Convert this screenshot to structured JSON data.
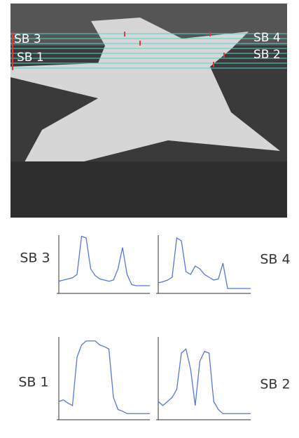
{
  "photo": {
    "labels": [
      "SB 3",
      "SB 1",
      "SB 4",
      "SB 2"
    ]
  },
  "chart_data": [
    {
      "type": "line",
      "title": "SB 3",
      "x": [
        0,
        1,
        2,
        3,
        4,
        5,
        6,
        7,
        8,
        9,
        10,
        11,
        12,
        13,
        14,
        15,
        16,
        17,
        18,
        19,
        20
      ],
      "xlim": [
        0,
        20
      ],
      "ylim": [
        0,
        100
      ],
      "series": [
        {
          "color": "#5577d6",
          "values": [
            18,
            20,
            22,
            24,
            30,
            98,
            95,
            40,
            28,
            22,
            20,
            18,
            20,
            40,
            78,
            30,
            12,
            10,
            10,
            10,
            10
          ]
        }
      ]
    },
    {
      "type": "line",
      "title": "SB 4",
      "x": [
        0,
        1,
        2,
        3,
        4,
        5,
        6,
        7,
        8,
        9,
        10,
        11,
        12,
        13,
        14,
        15,
        16,
        17,
        18,
        19,
        20
      ],
      "xlim": [
        0,
        20
      ],
      "ylim": [
        0,
        100
      ],
      "series": [
        {
          "color": "#5577d6",
          "values": [
            15,
            17,
            20,
            25,
            95,
            90,
            35,
            30,
            45,
            40,
            30,
            25,
            20,
            22,
            50,
            5,
            5,
            5,
            5,
            5,
            5
          ]
        }
      ]
    },
    {
      "type": "line",
      "title": "SB 1",
      "x": [
        0,
        1,
        2,
        3,
        4,
        5,
        6,
        7,
        8,
        9,
        10,
        11,
        12,
        13,
        14,
        15,
        16,
        17,
        18,
        19,
        20
      ],
      "xlim": [
        0,
        20
      ],
      "ylim": [
        0,
        100
      ],
      "series": [
        {
          "color": "#5577d6",
          "values": [
            20,
            22,
            18,
            15,
            75,
            90,
            95,
            95,
            95,
            90,
            88,
            85,
            25,
            10,
            8,
            5,
            5,
            5,
            5,
            5,
            5
          ]
        }
      ]
    },
    {
      "type": "line",
      "title": "SB 2",
      "x": [
        0,
        1,
        2,
        3,
        4,
        5,
        6,
        7,
        8,
        9,
        10,
        11,
        12,
        13,
        14,
        15,
        16,
        17,
        18,
        19,
        20
      ],
      "xlim": [
        0,
        20
      ],
      "ylim": [
        0,
        100
      ],
      "series": [
        {
          "color": "#5577d6",
          "values": [
            20,
            15,
            20,
            25,
            35,
            80,
            85,
            60,
            15,
            70,
            82,
            80,
            20,
            10,
            5,
            5,
            5,
            5,
            5,
            5,
            5
          ]
        }
      ]
    }
  ]
}
